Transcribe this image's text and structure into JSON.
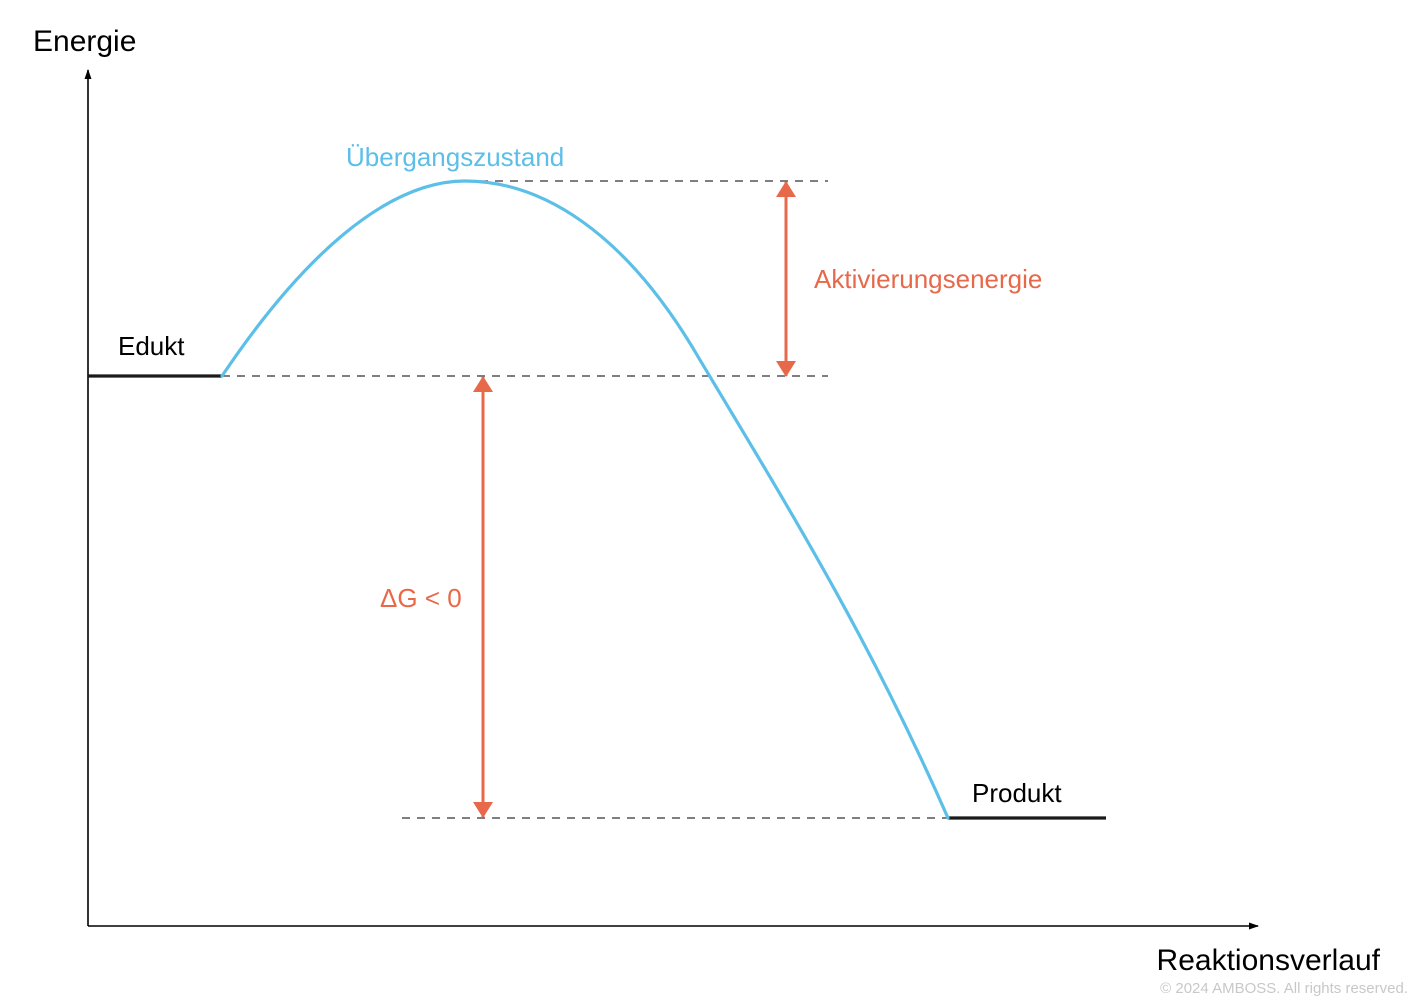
{
  "axes": {
    "y_label": "Energie",
    "x_label": "Reaktionsverlauf"
  },
  "labels": {
    "reactant": "Edukt",
    "product": "Produkt",
    "transition_state": "Übergangszustand",
    "activation_energy": "Aktivierungsenergie",
    "delta_g": "ΔG < 0"
  },
  "footer": {
    "copyright": "© 2024 AMBOSS. All rights reserved."
  },
  "colors": {
    "curve": "#5bbfe8",
    "arrow": "#e8684a",
    "axis": "#000000",
    "level": "#1a1a1a",
    "dashed": "#333333",
    "copyright": "#c8c8c8"
  }
}
